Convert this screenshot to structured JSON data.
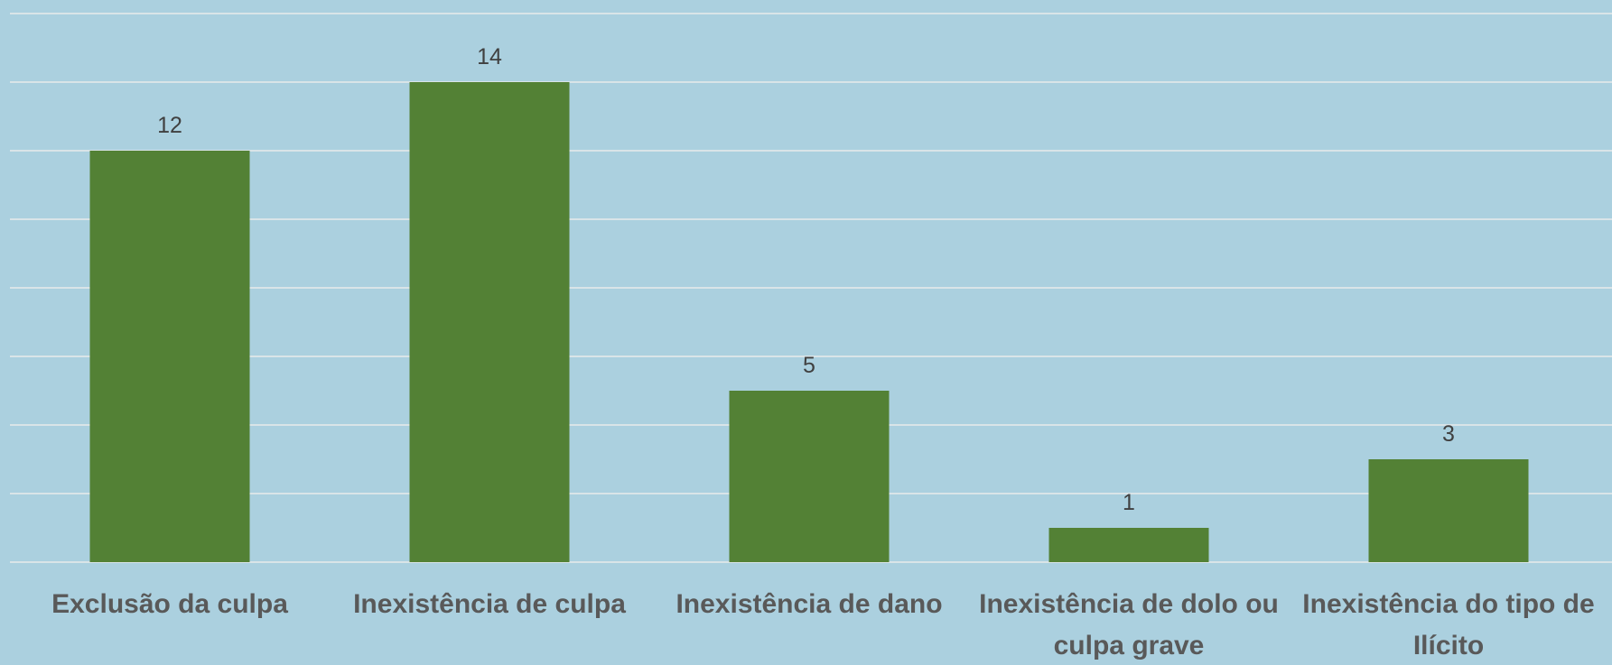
{
  "chart_data": {
    "type": "bar",
    "categories": [
      "Exclusão da culpa",
      "Inexistência de culpa",
      "Inexistência de dano",
      "Inexistência de dolo ou culpa grave",
      "Inexistência do tipo de Ilícito"
    ],
    "values": [
      12,
      14,
      5,
      1,
      3
    ],
    "color": "#538135",
    "ylim": [
      0,
      16
    ],
    "yticks": [
      0,
      2,
      4,
      6,
      8,
      10,
      12,
      14,
      16
    ],
    "grid": true
  }
}
